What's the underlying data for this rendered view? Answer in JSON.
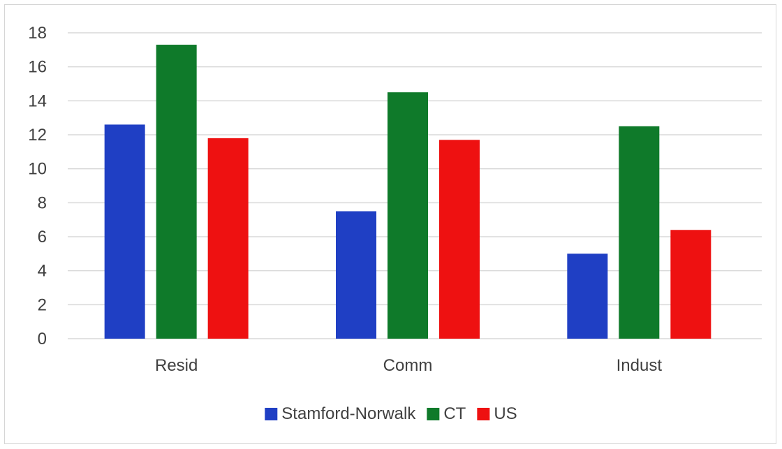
{
  "chart_data": {
    "type": "bar",
    "title": "",
    "xlabel": "",
    "ylabel": "",
    "categories": [
      "Resid",
      "Comm",
      "Indust"
    ],
    "series": [
      {
        "name": "Stamford-Norwalk",
        "color": "#1f3fc4",
        "values": [
          12.6,
          7.5,
          5.0
        ]
      },
      {
        "name": "CT",
        "color": "#0f7a2a",
        "values": [
          17.3,
          14.5,
          12.5
        ]
      },
      {
        "name": "US",
        "color": "#ee1111",
        "values": [
          11.8,
          11.7,
          6.4
        ]
      }
    ],
    "ylim": [
      0,
      18
    ],
    "yticks": [
      0,
      2,
      4,
      6,
      8,
      10,
      12,
      14,
      16,
      18
    ],
    "grid": true,
    "legend_position": "bottom"
  }
}
